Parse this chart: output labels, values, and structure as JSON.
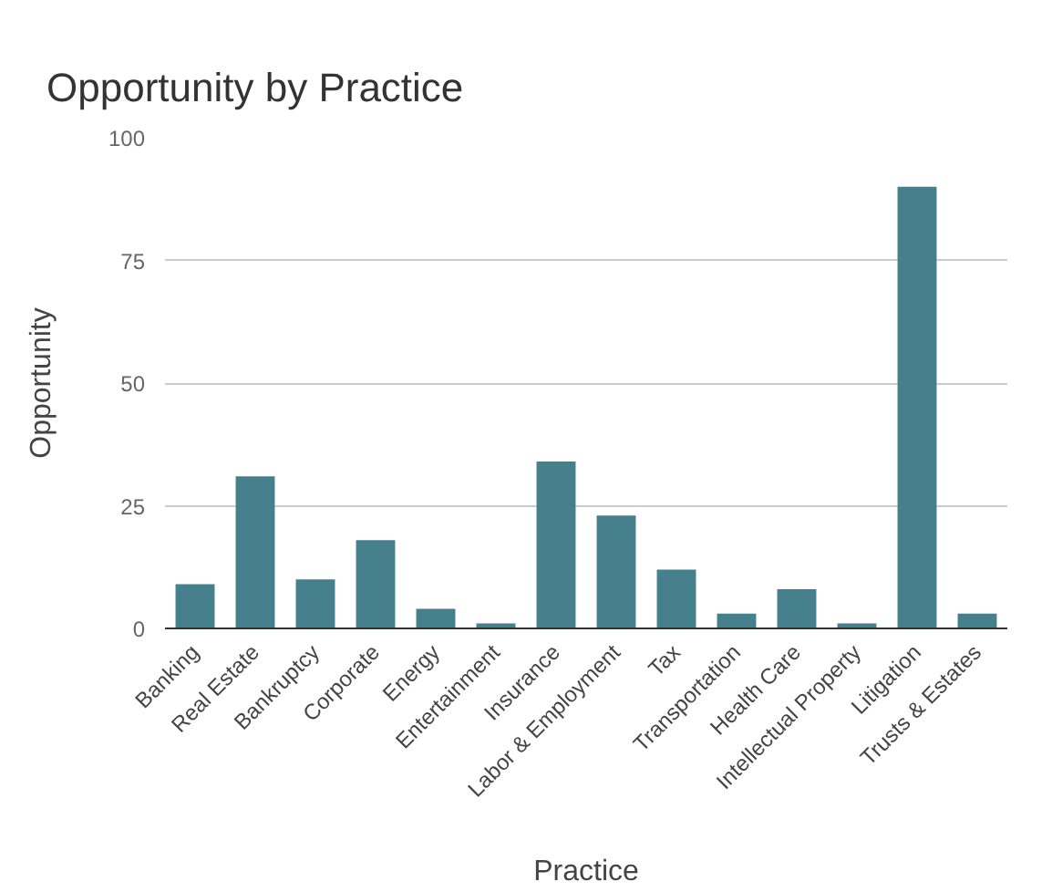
{
  "chart_data": {
    "type": "bar",
    "title": "Opportunity by Practice",
    "xlabel": "Practice",
    "ylabel": "Opportunity",
    "categories": [
      "Banking",
      "Real Estate",
      "Bankruptcy",
      "Corporate",
      "Energy",
      "Entertainment",
      "Insurance",
      "Labor & Employment",
      "Tax",
      "Transportation",
      "Health Care",
      "Intellectual Property",
      "Litigation",
      "Trusts & Estates"
    ],
    "values": [
      9,
      31,
      10,
      18,
      4,
      1,
      34,
      23,
      12,
      3,
      8,
      1,
      90,
      3
    ],
    "color": "#45808c",
    "ylim": [
      0,
      100
    ],
    "yticks": [
      0,
      25,
      50,
      75,
      100
    ],
    "grid": "y"
  }
}
